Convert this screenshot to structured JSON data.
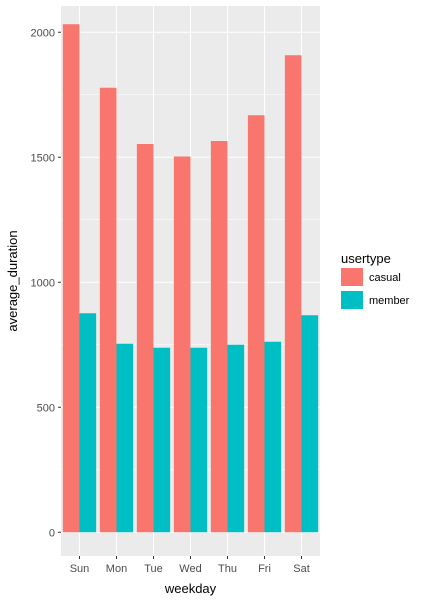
{
  "chart_data": {
    "type": "bar",
    "categories": [
      "Sun",
      "Mon",
      "Tue",
      "Wed",
      "Thu",
      "Fri",
      "Sat"
    ],
    "series": [
      {
        "name": "casual",
        "color": "#F8766D",
        "values": [
          2032,
          1778,
          1553,
          1503,
          1565,
          1668,
          1908
        ]
      },
      {
        "name": "member",
        "color": "#00BFC4",
        "values": [
          876,
          754,
          738,
          738,
          750,
          762,
          868
        ]
      }
    ],
    "xlabel": "weekday",
    "ylabel": "average_duration",
    "ylim": [
      -95,
      2105
    ],
    "yticks": [
      0,
      500,
      1000,
      1500,
      2000
    ],
    "ytick_labels": [
      "0",
      "500",
      "1000",
      "1500",
      "2000"
    ],
    "grid": true,
    "legend": {
      "title": "usertype",
      "position": "right"
    },
    "panel_background": "#EBEBEB",
    "gridline_color": "#FFFFFF"
  }
}
